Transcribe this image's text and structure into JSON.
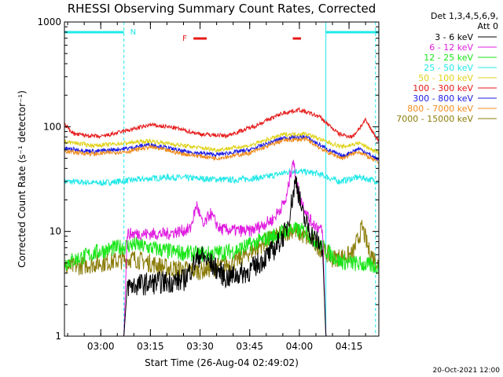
{
  "chart_data": {
    "type": "line",
    "title": "RHESSI Observing Summary Count Rates, Corrected",
    "xlabel": "Start Time (26-Aug-04 02:49:02)",
    "ylabel": "Corrected Count Rate (s⁻¹ detector⁻¹)",
    "y_scale": "log",
    "ylim": [
      1,
      1000
    ],
    "y_ticks": [
      {
        "value": 1,
        "label": "1"
      },
      {
        "value": 10,
        "label": "10"
      },
      {
        "value": 100,
        "label": "100"
      },
      {
        "value": 1000,
        "label": "1000"
      }
    ],
    "xlim": [
      "02:49:02",
      "04:24:00"
    ],
    "x_ticks": [
      {
        "value": "03:00",
        "label": "03:00"
      },
      {
        "value": "03:15",
        "label": "03:15"
      },
      {
        "value": "03:30",
        "label": "03:30"
      },
      {
        "value": "03:45",
        "label": "03:45"
      },
      {
        "value": "04:00",
        "label": "04:00"
      },
      {
        "value": "04:15",
        "label": "04:15"
      }
    ],
    "legend_header": [
      "Det 1,3,4,5,6,9,",
      "Att 0"
    ],
    "legend_position": "right, outside plot",
    "timestamp": "20-Oct-2021 12:00",
    "annotations": {
      "night_label": "N",
      "flare_label": "F",
      "night_bars": [
        [
          "02:49:02",
          "03:07:00"
        ],
        [
          "04:08:00",
          "04:24:00"
        ]
      ],
      "night_boundaries": [
        "03:07:00",
        "04:08:00",
        "04:23:00"
      ],
      "flare_bars": [
        [
          "03:28:00",
          "03:32:00"
        ],
        [
          "03:58:00",
          "04:00:30"
        ]
      ]
    },
    "series": [
      {
        "name": "3 - 6 keV",
        "color": "#000000",
        "points": [
          [
            "02:49:02",
            1.0
          ],
          [
            "03:07:00",
            1.0
          ],
          [
            "03:08:00",
            3.0
          ],
          [
            "03:15:00",
            3.2
          ],
          [
            "03:25:00",
            3.4
          ],
          [
            "03:30:00",
            6.0
          ],
          [
            "03:33:00",
            5.0
          ],
          [
            "03:38:00",
            3.6
          ],
          [
            "03:45:00",
            4.2
          ],
          [
            "03:52:00",
            6.5
          ],
          [
            "03:56:00",
            10.0
          ],
          [
            "03:59:00",
            32.0
          ],
          [
            "04:01:00",
            14.0
          ],
          [
            "04:04:00",
            9.0
          ],
          [
            "04:07:00",
            7.0
          ],
          [
            "04:08:00",
            1.0
          ],
          [
            "04:24:00",
            1.0
          ]
        ]
      },
      {
        "name": "6 - 12 keV",
        "color": "#e01ee0",
        "points": [
          [
            "02:49:02",
            1.0
          ],
          [
            "03:07:00",
            1.0
          ],
          [
            "03:08:00",
            9.5
          ],
          [
            "03:20:00",
            9.5
          ],
          [
            "03:27:00",
            10.5
          ],
          [
            "03:29:00",
            18.0
          ],
          [
            "03:31:00",
            11.0
          ],
          [
            "03:33:00",
            15.0
          ],
          [
            "03:36:00",
            10.5
          ],
          [
            "03:45:00",
            10.0
          ],
          [
            "03:52:00",
            13.0
          ],
          [
            "03:56:00",
            20.0
          ],
          [
            "03:58:00",
            48.0
          ],
          [
            "04:00:00",
            22.0
          ],
          [
            "04:03:00",
            13.0
          ],
          [
            "04:07:00",
            10.0
          ],
          [
            "04:08:00",
            1.0
          ],
          [
            "04:24:00",
            1.0
          ]
        ]
      },
      {
        "name": "12 - 25 keV",
        "color": "#19e619",
        "points": [
          [
            "02:49:02",
            5.0
          ],
          [
            "03:00:00",
            6.5
          ],
          [
            "03:10:00",
            7.5
          ],
          [
            "03:20:00",
            6.5
          ],
          [
            "03:30:00",
            6.0
          ],
          [
            "03:40:00",
            6.5
          ],
          [
            "03:50:00",
            8.5
          ],
          [
            "03:57:00",
            10.5
          ],
          [
            "04:02:00",
            10.0
          ],
          [
            "04:06:00",
            7.5
          ],
          [
            "04:12:00",
            5.2
          ],
          [
            "04:24:00",
            4.6
          ]
        ]
      },
      {
        "name": "25 - 50 keV",
        "color": "#22e8e8",
        "points": [
          [
            "02:49:02",
            30.0
          ],
          [
            "03:00:00",
            29.0
          ],
          [
            "03:10:00",
            31.0
          ],
          [
            "03:20:00",
            33.0
          ],
          [
            "03:30:00",
            32.0
          ],
          [
            "03:40:00",
            31.0
          ],
          [
            "03:50:00",
            33.0
          ],
          [
            "03:58:00",
            38.0
          ],
          [
            "04:05:00",
            36.0
          ],
          [
            "04:12:00",
            30.0
          ],
          [
            "04:18:00",
            33.0
          ],
          [
            "04:24:00",
            30.0
          ]
        ]
      },
      {
        "name": "50 - 100 keV",
        "color": "#e0d21a",
        "points": [
          [
            "02:49:02",
            72.0
          ],
          [
            "02:58:00",
            66.0
          ],
          [
            "03:08:00",
            70.0
          ],
          [
            "03:15:00",
            73.0
          ],
          [
            "03:25:00",
            66.0
          ],
          [
            "03:35:00",
            60.0
          ],
          [
            "03:45:00",
            66.0
          ],
          [
            "03:55:00",
            84.0
          ],
          [
            "04:02:00",
            86.0
          ],
          [
            "04:08:00",
            72.0
          ],
          [
            "04:13:00",
            64.0
          ],
          [
            "04:18:00",
            70.0
          ],
          [
            "04:24:00",
            56.0
          ]
        ]
      },
      {
        "name": "100 - 300 keV",
        "color": "#e61919",
        "points": [
          [
            "02:49:02",
            105.0
          ],
          [
            "02:52:00",
            85.0
          ],
          [
            "03:00:00",
            80.0
          ],
          [
            "03:08:00",
            92.0
          ],
          [
            "03:15:00",
            104.0
          ],
          [
            "03:22:00",
            98.0
          ],
          [
            "03:30:00",
            85.0
          ],
          [
            "03:38:00",
            82.0
          ],
          [
            "03:46:00",
            100.0
          ],
          [
            "03:55:00",
            135.0
          ],
          [
            "04:00:00",
            145.0
          ],
          [
            "04:06:00",
            125.0
          ],
          [
            "04:12:00",
            85.0
          ],
          [
            "04:16:00",
            80.0
          ],
          [
            "04:20:00",
            115.0
          ],
          [
            "04:24:00",
            72.0
          ]
        ]
      },
      {
        "name": "300 - 800 keV",
        "color": "#1a1ae6",
        "points": [
          [
            "02:49:02",
            62.0
          ],
          [
            "02:58:00",
            58.0
          ],
          [
            "03:08:00",
            62.0
          ],
          [
            "03:15:00",
            68.0
          ],
          [
            "03:25:00",
            58.0
          ],
          [
            "03:35:00",
            54.0
          ],
          [
            "03:45:00",
            60.0
          ],
          [
            "03:55:00",
            78.0
          ],
          [
            "04:02:00",
            80.0
          ],
          [
            "04:08:00",
            62.0
          ],
          [
            "04:13:00",
            52.0
          ],
          [
            "04:18:00",
            62.0
          ],
          [
            "04:24:00",
            48.0
          ]
        ]
      },
      {
        "name": "800 - 7000 keV",
        "color": "#f08c1e",
        "points": [
          [
            "02:49:02",
            58.0
          ],
          [
            "02:58:00",
            55.0
          ],
          [
            "03:08:00",
            58.0
          ],
          [
            "03:15:00",
            64.0
          ],
          [
            "03:25:00",
            55.0
          ],
          [
            "03:35:00",
            50.0
          ],
          [
            "03:45:00",
            56.0
          ],
          [
            "03:55:00",
            74.0
          ],
          [
            "04:02:00",
            76.0
          ],
          [
            "04:08:00",
            58.0
          ],
          [
            "04:13:00",
            50.0
          ],
          [
            "04:18:00",
            58.0
          ],
          [
            "04:24:00",
            45.0
          ]
        ]
      },
      {
        "name": "7000 - 15000 keV",
        "color": "#8b7d0a",
        "points": [
          [
            "02:49:02",
            4.5
          ],
          [
            "03:00:00",
            5.0
          ],
          [
            "03:10:00",
            5.5
          ],
          [
            "03:20:00",
            4.5
          ],
          [
            "03:30:00",
            4.2
          ],
          [
            "03:40:00",
            5.0
          ],
          [
            "03:50:00",
            8.0
          ],
          [
            "03:58:00",
            10.5
          ],
          [
            "04:04:00",
            8.0
          ],
          [
            "04:10:00",
            5.5
          ],
          [
            "04:16:00",
            6.0
          ],
          [
            "04:19:00",
            11.0
          ],
          [
            "04:21:00",
            6.5
          ],
          [
            "04:24:00",
            4.8
          ]
        ]
      }
    ]
  }
}
